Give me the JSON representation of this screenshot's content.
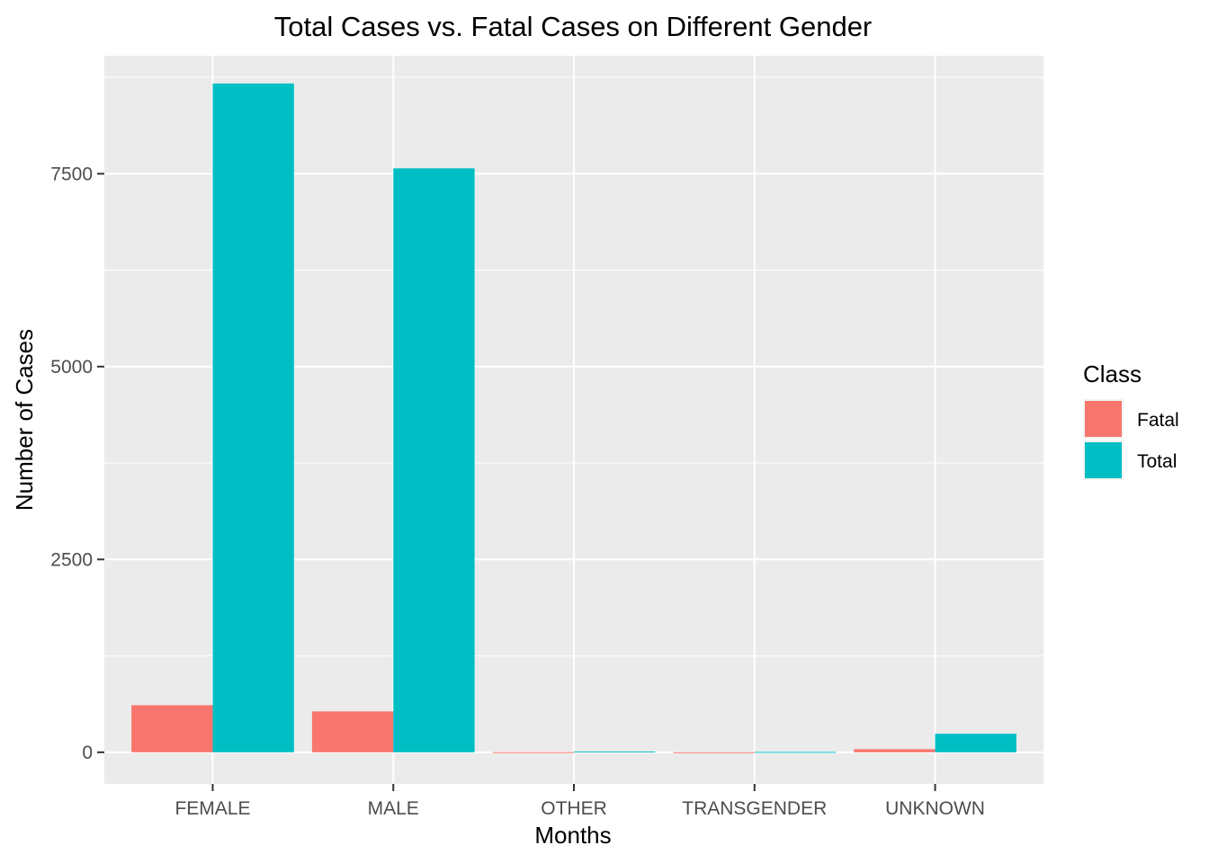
{
  "chart_data": {
    "type": "bar",
    "title": "Total Cases vs. Fatal Cases on Different Gender",
    "xlabel": "Months",
    "ylabel": "Number of Cases",
    "categories": [
      "FEMALE",
      "MALE",
      "OTHER",
      "TRANSGENDER",
      "UNKNOWN"
    ],
    "series": [
      {
        "name": "Fatal",
        "color": "#F8766D",
        "values": [
          610,
          530,
          2,
          1,
          40
        ]
      },
      {
        "name": "Total",
        "color": "#00BFC4",
        "values": [
          8670,
          7570,
          10,
          5,
          240
        ]
      }
    ],
    "ylim": [
      -410,
      9030
    ],
    "yticks": [
      0,
      2500,
      5000,
      7500
    ],
    "yticklabels": [
      "0",
      "2500",
      "5000",
      "7500"
    ],
    "grid": true,
    "legend": {
      "title": "Class",
      "position": "right"
    }
  }
}
